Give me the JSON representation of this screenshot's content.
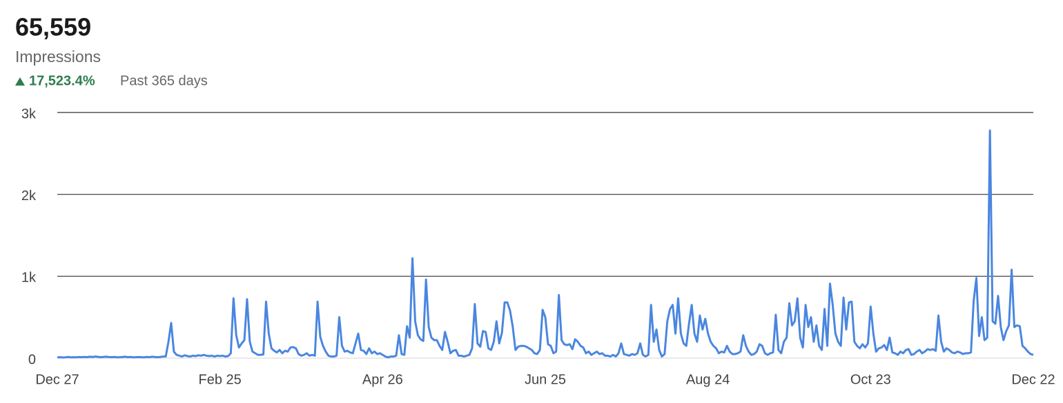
{
  "summary": {
    "total": "65,559",
    "metric": "Impressions",
    "change": "17,523.4%",
    "period": "Past 365 days"
  },
  "chart_data": {
    "type": "line",
    "color": "#4a86e0",
    "grid": true,
    "ylim": [
      0,
      3000
    ],
    "yticks": [
      0,
      {
        "value": 1000,
        "label": "1k"
      },
      {
        "value": 2000,
        "label": "2k"
      },
      {
        "value": 3000,
        "label": "3k"
      }
    ],
    "categories": [
      "Dec 27",
      null,
      null,
      null,
      null,
      null,
      null,
      null,
      null,
      null,
      null,
      null,
      null,
      null,
      null,
      null,
      null,
      null,
      null,
      null,
      null,
      null,
      null,
      null,
      null,
      null,
      null,
      null,
      null,
      null,
      null,
      null,
      null,
      null,
      null,
      null,
      null,
      null,
      null,
      null,
      null,
      null,
      null,
      null,
      null,
      null,
      null,
      null,
      null,
      null,
      null,
      null,
      null,
      null,
      null,
      null,
      null,
      null,
      null,
      null,
      "Feb 25",
      null,
      null,
      null,
      null,
      null,
      null,
      null,
      null,
      null,
      null,
      null,
      null,
      null,
      null,
      null,
      null,
      null,
      null,
      null,
      null,
      null,
      null,
      null,
      null,
      null,
      null,
      null,
      null,
      null,
      null,
      null,
      null,
      null,
      null,
      null,
      null,
      null,
      null,
      null,
      null,
      null,
      null,
      null,
      null,
      null,
      null,
      null,
      null,
      null,
      null,
      null,
      null,
      null,
      null,
      null,
      null,
      null,
      null,
      null,
      "Apr 26",
      null,
      null,
      null,
      null,
      null,
      null,
      null,
      null,
      null,
      null,
      null,
      null,
      null,
      null,
      null,
      null,
      null,
      null,
      null,
      null,
      null,
      null,
      null,
      null,
      null,
      null,
      null,
      null,
      null,
      null,
      null,
      null,
      null,
      null,
      null,
      null,
      null,
      null,
      null,
      null,
      null,
      null,
      null,
      null,
      null,
      null,
      null,
      null,
      null,
      null,
      null,
      null,
      null,
      null,
      null,
      null,
      null,
      null,
      null,
      "Jun 25",
      null,
      null,
      null,
      null,
      null,
      null,
      null,
      null,
      null,
      null,
      null,
      null,
      null,
      null,
      null,
      null,
      null,
      null,
      null,
      null,
      null,
      null,
      null,
      null,
      null,
      null,
      null,
      null,
      null,
      null,
      null,
      null,
      null,
      null,
      null,
      null,
      null,
      null,
      null,
      null,
      null,
      null,
      null,
      null,
      null,
      null,
      null,
      null,
      null,
      null,
      null,
      null,
      null,
      null,
      null,
      null,
      null,
      null,
      null,
      "Aug 24",
      null,
      null,
      null,
      null,
      null,
      null,
      null,
      null,
      null,
      null,
      null,
      null,
      null,
      null,
      null,
      null,
      null,
      null,
      null,
      null,
      null,
      null,
      null,
      null,
      null,
      null,
      null,
      null,
      null,
      null,
      null,
      null,
      null,
      null,
      null,
      null,
      null,
      null,
      null,
      null,
      null,
      null,
      null,
      null,
      null,
      null,
      null,
      null,
      null,
      null,
      null,
      null,
      null,
      null,
      null,
      null,
      null,
      null,
      null,
      "Oct 23",
      null,
      null,
      null,
      null,
      null,
      null,
      null,
      null,
      null,
      null,
      null,
      null,
      null,
      null,
      null,
      null,
      null,
      null,
      null,
      null,
      null,
      null,
      null,
      null,
      null,
      null,
      null,
      null,
      null,
      null,
      null,
      null,
      null,
      null,
      null,
      null,
      null,
      null,
      null,
      null,
      null,
      null,
      null,
      null,
      null,
      null,
      null,
      null,
      null,
      null,
      null,
      null,
      null,
      null,
      null,
      null,
      null,
      null,
      null,
      "Dec 22"
    ],
    "values": [
      10,
      12,
      8,
      10,
      15,
      10,
      12,
      10,
      14,
      12,
      15,
      12,
      18,
      14,
      20,
      16,
      12,
      15,
      18,
      14,
      12,
      15,
      10,
      12,
      14,
      18,
      12,
      15,
      10,
      12,
      14,
      12,
      10,
      15,
      12,
      18,
      14,
      12,
      15,
      20,
      20,
      200,
      430,
      80,
      40,
      30,
      20,
      35,
      25,
      20,
      30,
      25,
      35,
      30,
      40,
      30,
      25,
      30,
      20,
      30,
      25,
      30,
      20,
      25,
      60,
      730,
      280,
      130,
      180,
      220,
      720,
      200,
      80,
      60,
      40,
      40,
      45,
      690,
      300,
      120,
      90,
      70,
      100,
      60,
      90,
      80,
      130,
      135,
      120,
      50,
      30,
      40,
      60,
      30,
      40,
      30,
      690,
      260,
      150,
      80,
      30,
      20,
      20,
      30,
      500,
      150,
      80,
      90,
      70,
      60,
      180,
      300,
      100,
      90,
      50,
      120,
      60,
      80,
      50,
      60,
      40,
      20,
      10,
      20,
      20,
      30,
      280,
      50,
      40,
      390,
      250,
      1220,
      450,
      280,
      230,
      210,
      960,
      380,
      250,
      220,
      220,
      150,
      100,
      320,
      200,
      60,
      90,
      100,
      30,
      30,
      20,
      30,
      40,
      120,
      660,
      180,
      140,
      330,
      320,
      120,
      100,
      200,
      450,
      180,
      310,
      680,
      680,
      580,
      380,
      100,
      140,
      150,
      150,
      140,
      120,
      100,
      60,
      50,
      100,
      590,
      500,
      170,
      150,
      60,
      80,
      770,
      220,
      170,
      160,
      170,
      110,
      230,
      200,
      150,
      130,
      60,
      80,
      40,
      60,
      80,
      50,
      60,
      30,
      30,
      20,
      40,
      20,
      60,
      180,
      50,
      40,
      30,
      50,
      40,
      60,
      180,
      40,
      20,
      40,
      650,
      200,
      350,
      100,
      20,
      50,
      450,
      600,
      650,
      300,
      730,
      300,
      180,
      150,
      420,
      650,
      300,
      200,
      520,
      350,
      480,
      300,
      200,
      150,
      120,
      60,
      80,
      70,
      150,
      80,
      50,
      50,
      60,
      80,
      280,
      150,
      80,
      40,
      50,
      80,
      170,
      150,
      60,
      40,
      60,
      70,
      530,
      100,
      60,
      200,
      250,
      670,
      400,
      450,
      730,
      250,
      130,
      650,
      380,
      500,
      200,
      400,
      150,
      100,
      600,
      150,
      910,
      650,
      300,
      200,
      150,
      740,
      350,
      680,
      690,
      200,
      150,
      120,
      170,
      130,
      180,
      630,
      300,
      80,
      120,
      130,
      160,
      100,
      250,
      70,
      60,
      40,
      80,
      60,
      100,
      110,
      40,
      50,
      80,
      100,
      60,
      80,
      110,
      100,
      110,
      90,
      520,
      200,
      80,
      120,
      100,
      70,
      60,
      80,
      70,
      50,
      60,
      60,
      70,
      700,
      980,
      270,
      500,
      220,
      250,
      2780,
      450,
      420,
      760,
      380,
      220,
      330,
      400,
      1080,
      380,
      400,
      390,
      150,
      120,
      80,
      50,
      40
    ]
  }
}
